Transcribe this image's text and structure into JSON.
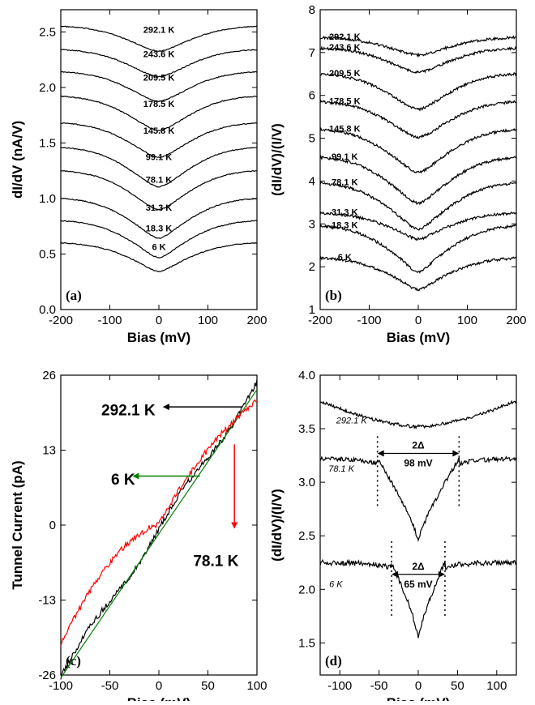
{
  "chart_data": [
    {
      "panel_label": "(a)",
      "type": "line",
      "xlabel": "Bias (mV)",
      "ylabel": "dI/dV (nA/V)",
      "xlim": [
        -200,
        200
      ],
      "ylim": [
        0.0,
        2.7
      ],
      "xticks": [
        "-200",
        "-100",
        "0",
        "100",
        "200"
      ],
      "yticks": [
        "0.0",
        "0.5",
        "1.0",
        "1.5",
        "2.0",
        "2.5"
      ],
      "series": [
        {
          "name": "292.1 K",
          "min": 2.33,
          "edge": 2.55,
          "dip": 0.1
        },
        {
          "name": "243.6 K",
          "min": 2.1,
          "edge": 2.34,
          "dip": 0.1
        },
        {
          "name": "209.5 K",
          "min": 1.88,
          "edge": 2.14,
          "dip": 0.12
        },
        {
          "name": "178.5 K",
          "min": 1.62,
          "edge": 1.92,
          "dip": 0.15
        },
        {
          "name": "145.8 K",
          "min": 1.38,
          "edge": 1.68,
          "dip": 0.2
        },
        {
          "name": "99.1 K",
          "min": 1.12,
          "edge": 1.46,
          "dip": 0.28
        },
        {
          "name": "78.1 K",
          "min": 0.92,
          "edge": 1.25,
          "dip": 0.4
        },
        {
          "name": "31.3 K",
          "min": 0.67,
          "edge": 1.0,
          "dip": 0.55
        },
        {
          "name": "18.3 K",
          "min": 0.5,
          "edge": 0.8,
          "dip": 0.7
        },
        {
          "name": "6 K",
          "min": 0.37,
          "edge": 0.6,
          "dip": 0.8
        }
      ]
    },
    {
      "panel_label": "(b)",
      "type": "line",
      "xlabel": "Bias (mV)",
      "ylabel": "(dI/dV)/(I/V)",
      "xlim": [
        -200,
        200
      ],
      "ylim": [
        1,
        8
      ],
      "xticks": [
        "-200",
        "-100",
        "0",
        "100",
        "200"
      ],
      "yticks": [
        "1",
        "2",
        "3",
        "4",
        "5",
        "6",
        "7",
        "8"
      ],
      "series": [
        {
          "name": "292.1 K",
          "min": 6.95,
          "edge": 7.35,
          "dip": 0.15
        },
        {
          "name": "243.6 K",
          "min": 6.55,
          "edge": 7.1,
          "dip": 0.15
        },
        {
          "name": "209.5 K",
          "min": 5.7,
          "edge": 6.5,
          "dip": 0.2
        },
        {
          "name": "178.5 K",
          "min": 5.05,
          "edge": 5.85,
          "dip": 0.25
        },
        {
          "name": "145.8 K",
          "min": 4.25,
          "edge": 5.2,
          "dip": 0.3
        },
        {
          "name": "99.1 K",
          "min": 3.55,
          "edge": 4.55,
          "dip": 0.45
        },
        {
          "name": "78.1 K",
          "min": 2.95,
          "edge": 3.95,
          "dip": 0.5
        },
        {
          "name": "31.3 K",
          "min": 2.7,
          "edge": 3.25,
          "dip": 0.7
        },
        {
          "name": "18.3 K",
          "min": 2.0,
          "edge": 2.95,
          "dip": 0.85
        },
        {
          "name": "6 K",
          "min": 1.55,
          "edge": 2.2,
          "dip": 0.9
        }
      ]
    },
    {
      "panel_label": "(c)",
      "type": "line",
      "xlabel": "Bias (mV)",
      "ylabel": "Tunnel Current (pA)",
      "xlim": [
        -100,
        100
      ],
      "ylim": [
        -26,
        26
      ],
      "xticks": [
        "-100",
        "-50",
        "0",
        "50",
        "100"
      ],
      "yticks": [
        "-26",
        "-13",
        "0",
        "13",
        "26"
      ],
      "series": [
        {
          "name": "292.1 K",
          "color": "#000000",
          "y_at_xmax": 24.5,
          "y_at_xmin": -26.0
        },
        {
          "name": "6 K",
          "color": "#008000",
          "y_at_xmax": 23.5,
          "y_at_xmin": -26.5
        },
        {
          "name": "78.1 K",
          "color": "#ff0000",
          "y_at_xmax": 21.5,
          "y_at_xmin": -20.5
        }
      ],
      "annotations": [
        {
          "text": "292.1 K",
          "arrow_color": "#000000"
        },
        {
          "text": "6 K",
          "arrow_color": "#008000"
        },
        {
          "text": "78.1 K",
          "arrow_color": "#ff0000"
        }
      ]
    },
    {
      "panel_label": "(d)",
      "type": "line",
      "xlabel": "Bias (mV)",
      "ylabel": "(dI/dV)/(I/V)",
      "xlim": [
        -125,
        125
      ],
      "ylim": [
        1.2,
        4.0
      ],
      "xticks": [
        "-100",
        "-50",
        "0",
        "50",
        "100"
      ],
      "yticks": [
        "1.5",
        "2.0",
        "2.5",
        "3.0",
        "3.5",
        "4.0"
      ],
      "series": [
        {
          "name": "292.1 K",
          "min": 3.52,
          "edge": 3.76
        },
        {
          "name": "78.1 K",
          "min": 2.45,
          "edge": 3.22
        },
        {
          "name": "6 K",
          "min": 1.55,
          "edge": 2.25
        }
      ],
      "gaps": [
        {
          "label": "2Δ",
          "value": "98 mV",
          "half_width": 52
        },
        {
          "label": "2Δ",
          "value": "65 mV",
          "half_width": 34
        }
      ]
    }
  ]
}
